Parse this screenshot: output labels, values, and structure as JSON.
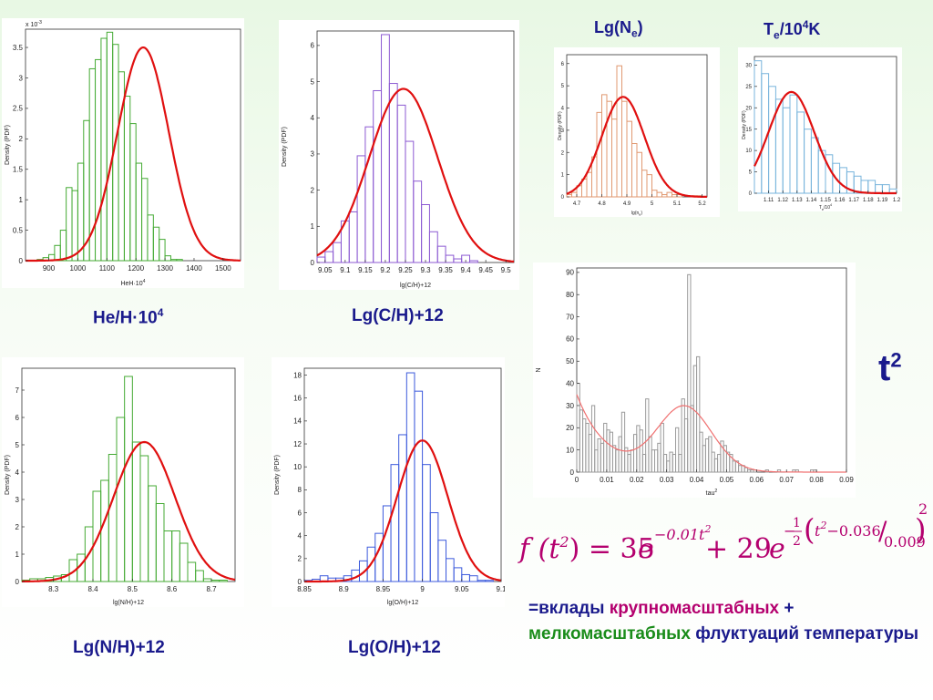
{
  "colors": {
    "caption": "#1a1a8c",
    "fit": "#e01010",
    "accent_magenta": "#b4006e",
    "accent_green": "#1a8c1a"
  },
  "captions": {
    "he": "He/H·10",
    "he_sup": "4",
    "ch": "Lg(C/H)+12",
    "nh": "Lg(N/H)+12",
    "oh": "Lg(O/H)+12",
    "ne": "Lg(N",
    "ne_sub": "e",
    "ne_end": ")",
    "te": "T",
    "te_sub": "e",
    "te_mid": "/10",
    "te_sup": "4",
    "te_end": "K",
    "t2": "t",
    "t2_sup": "2"
  },
  "formula": {
    "lhs": "f (t",
    "lhs_sup": "2",
    "lhs_end": ") = 35",
    "e1": "e",
    "e1_exp": "−0.01t",
    "e1_exp_sup": "2",
    "plus": "+ 29",
    "e2": "e",
    "e2_exp_minus": "−",
    "e2_exp_num": "1",
    "e2_exp_den": "2",
    "e2_exp_inner": "t",
    "e2_exp_inner_sup": "2",
    "e2_exp_minus_val": "−0.036",
    "e2_exp_div": "0.009",
    "e2_exp_pow": "2"
  },
  "note": {
    "part1": "=вклады ",
    "part2": "крупномасштабных",
    "part3": " + ",
    "part4": "мелкомасштабных",
    "part5": " флуктуаций температуры"
  },
  "chart_data": [
    {
      "id": "he",
      "type": "bar",
      "color": "#44aa33",
      "ylabel": "Density (PDF)",
      "xlabel": "HeH·10",
      "xlabel_sup": "4",
      "scale_note": "x 10",
      "scale_note_sup": "-3",
      "xlim": [
        820,
        1560
      ],
      "ylim": [
        0,
        3.8
      ],
      "xticks": [
        "900",
        "1000",
        "1100",
        "1200",
        "1300",
        "1400",
        "1500"
      ],
      "yticks": [
        "0",
        "0.5",
        "1",
        "1.5",
        "2",
        "2.5",
        "3",
        "3.5"
      ],
      "bin_start": 840,
      "bin_width": 20,
      "values": [
        0,
        0.02,
        0.05,
        0.1,
        0.25,
        0.5,
        1.2,
        1.15,
        1.6,
        2.3,
        3.15,
        3.3,
        3.65,
        3.75,
        3.55,
        3.1,
        2.7,
        2.25,
        1.6,
        1.35,
        0.75,
        0.55,
        0.35,
        0.08,
        0.02,
        0.02,
        0
      ],
      "fit": {
        "mean": 1225,
        "sigma": 88,
        "peak": 3.5
      }
    },
    {
      "id": "ch",
      "type": "bar",
      "color": "#8c5ad2",
      "ylabel": "Density (PDF)",
      "xlabel": "lg(C/H)+12",
      "xlim": [
        9.03,
        9.52
      ],
      "ylim": [
        0,
        6.4
      ],
      "xticks": [
        "9.05",
        "9.1",
        "9.15",
        "9.2",
        "9.25",
        "9.3",
        "9.35",
        "9.4",
        "9.45",
        "9.5"
      ],
      "yticks": [
        "0",
        "1",
        "2",
        "3",
        "4",
        "5",
        "6"
      ],
      "bin_start": 9.03,
      "bin_width": 0.02,
      "values": [
        0.15,
        0.3,
        0.55,
        1.15,
        1.4,
        2.95,
        3.75,
        4.75,
        6.3,
        4.95,
        4.35,
        3.35,
        2.25,
        1.6,
        0.85,
        0.45,
        0.2,
        0.1,
        0.2,
        0.05
      ],
      "fit": {
        "mean": 9.245,
        "sigma": 0.085,
        "peak": 4.8
      }
    },
    {
      "id": "nh",
      "type": "bar",
      "color": "#44aa33",
      "ylabel": "Density (PDF)",
      "xlabel": "lg(N/H)+12",
      "xlim": [
        8.22,
        8.76
      ],
      "ylim": [
        0,
        7.8
      ],
      "xticks": [
        "8.3",
        "8.4",
        "8.5",
        "8.6",
        "8.7"
      ],
      "yticks": [
        "0",
        "1",
        "2",
        "3",
        "4",
        "5",
        "6",
        "7"
      ],
      "bin_start": 8.22,
      "bin_width": 0.02,
      "values": [
        0.05,
        0.1,
        0.1,
        0.15,
        0.2,
        0.25,
        0.8,
        1.0,
        2.0,
        3.3,
        3.7,
        4.65,
        6.0,
        7.5,
        5.1,
        4.6,
        3.5,
        2.85,
        1.85,
        1.85,
        1.4,
        0.7,
        0.4,
        0.1,
        0.05,
        0.05,
        0
      ],
      "fit": {
        "mean": 8.53,
        "sigma": 0.078,
        "peak": 5.1
      }
    },
    {
      "id": "oh",
      "type": "bar",
      "color": "#3c5adc",
      "ylabel": "Density (PDF)",
      "xlabel": "lg(O/H)+12",
      "xlim": [
        8.85,
        9.1
      ],
      "ylim": [
        0,
        18.6
      ],
      "xticks": [
        "8.85",
        "8.9",
        "8.95",
        "9",
        "9.05",
        "9.1"
      ],
      "yticks": [
        "0",
        "2",
        "4",
        "6",
        "8",
        "10",
        "12",
        "14",
        "16",
        "18"
      ],
      "bin_start": 8.85,
      "bin_width": 0.01,
      "values": [
        0.1,
        0.2,
        0.5,
        0.3,
        0.3,
        0.5,
        1.0,
        1.8,
        3.0,
        4.2,
        6.6,
        10.2,
        12.8,
        18.2,
        16.6,
        10.2,
        6.0,
        3.6,
        2.0,
        1.2,
        0.6,
        0.5,
        0.1,
        0.1,
        0
      ],
      "fit": {
        "mean": 9.0,
        "sigma": 0.032,
        "peak": 12.3
      }
    },
    {
      "id": "ne",
      "type": "bar",
      "color": "#e09870",
      "ylabel": "Density (PDF)",
      "xlabel": "lg(n",
      "xlabel_sub": "e",
      "xlabel_end": ")",
      "xlim": [
        4.66,
        5.22
      ],
      "ylim": [
        0,
        6.4
      ],
      "xticks": [
        "4.7",
        "4.8",
        "4.9",
        "5",
        "5.1",
        "5.2"
      ],
      "yticks": [
        "0",
        "1",
        "2",
        "3",
        "4",
        "5",
        "6"
      ],
      "bin_start": 4.66,
      "bin_width": 0.02,
      "values": [
        0.1,
        0.2,
        0.5,
        0.8,
        1.1,
        1.8,
        3.8,
        4.6,
        4.3,
        3.5,
        5.9,
        4.3,
        3.4,
        2.4,
        2.0,
        1.2,
        1.0,
        0.3,
        0.2,
        0.1,
        0.2,
        0.1,
        0.1,
        0,
        0,
        0.05,
        0.05,
        0
      ],
      "fit": {
        "mean": 4.885,
        "sigma": 0.085,
        "peak": 4.5
      }
    },
    {
      "id": "te",
      "type": "bar",
      "color": "#78b4dc",
      "ylabel": "Density (PDF)",
      "xlabel": "T",
      "xlabel_sub": "e",
      "xlabel_mid": "/10",
      "xlabel_sup": "4",
      "xlim": [
        1.1,
        1.2
      ],
      "ylim": [
        0,
        32
      ],
      "xticks": [
        "1.11",
        "1.12",
        "1.13",
        "1.14",
        "1.15",
        "1.16",
        "1.17",
        "1.18",
        "1.19",
        "1.2"
      ],
      "yticks": [
        "0",
        "5",
        "10",
        "15",
        "20",
        "25",
        "30"
      ],
      "bin_start": 1.1,
      "bin_width": 0.005,
      "values": [
        31,
        28,
        25,
        22,
        20,
        23,
        19,
        15,
        13,
        10,
        9,
        7,
        6,
        5,
        4,
        3,
        3,
        2,
        2,
        1
      ],
      "fit": {
        "mean": 1.126,
        "sigma": 0.016,
        "peak": 23.7
      }
    },
    {
      "id": "t2",
      "type": "bar",
      "color": "#9a9a9a",
      "ylabel": "N",
      "xlabel": "tau",
      "xlabel_sup": "2",
      "xlim": [
        0,
        0.09
      ],
      "ylim": [
        0,
        92
      ],
      "xticks": [
        "0",
        "0.01",
        "0.02",
        "0.03",
        "0.04",
        "0.05",
        "0.06",
        "0.07",
        "0.08",
        "0.09"
      ],
      "yticks": [
        "0",
        "10",
        "20",
        "30",
        "40",
        "50",
        "60",
        "70",
        "80",
        "90"
      ],
      "bin_start": 0,
      "bin_width": 0.001,
      "values": [
        40,
        28,
        24,
        22,
        17,
        30,
        10,
        15,
        13,
        22,
        19,
        18,
        12,
        10,
        16,
        27,
        11,
        8,
        10,
        17,
        21,
        19,
        8,
        33,
        16,
        10,
        10,
        13,
        22,
        8,
        5,
        9,
        8,
        20,
        8,
        33,
        24,
        89,
        30,
        48,
        52,
        18,
        12,
        15,
        16,
        9,
        6,
        8,
        14,
        12,
        9,
        8,
        5,
        5,
        3,
        3,
        2,
        1,
        1,
        1,
        0,
        0,
        0,
        1,
        0,
        0,
        0,
        1,
        0,
        0,
        0,
        0,
        1,
        1,
        0,
        0,
        0,
        0,
        1,
        1,
        0,
        0,
        0,
        0,
        0,
        0,
        0,
        0,
        0,
        0
      ],
      "fit_mixture": {
        "a": 35,
        "k": 0.01,
        "b": 29,
        "mean": 0.036,
        "sigma": 0.009
      }
    }
  ]
}
